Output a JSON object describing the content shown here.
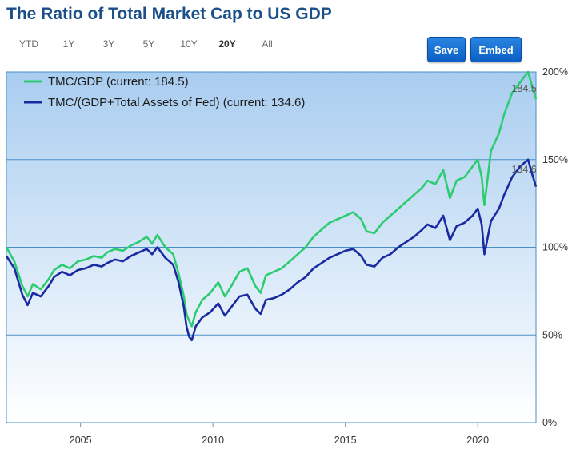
{
  "title": "The Ratio of Total Market Cap to US GDP",
  "ranges": [
    {
      "label": "YTD",
      "active": false
    },
    {
      "label": "1Y",
      "active": false
    },
    {
      "label": "3Y",
      "active": false
    },
    {
      "label": "5Y",
      "active": false
    },
    {
      "label": "10Y",
      "active": false
    },
    {
      "label": "20Y",
      "active": true
    },
    {
      "label": "All",
      "active": false
    }
  ],
  "buttons": {
    "save": "Save",
    "embed": "Embed"
  },
  "colors": {
    "tmc_gdp": "#2ecc71",
    "tmc_fed": "#1a2aa0",
    "bg_top": "#a9cdf0",
    "bg_bottom": "#ffffff",
    "grid": "#4a90c8"
  },
  "chart_data": {
    "type": "line",
    "title": "The Ratio of Total Market Cap to US GDP",
    "xlim": [
      2002.2,
      2022.2
    ],
    "ylim": [
      0,
      200
    ],
    "x_ticks": [
      "2005",
      "2010",
      "2015",
      "2020"
    ],
    "y_ticks": [
      "0%",
      "50%",
      "100%",
      "150%",
      "200%"
    ],
    "legend_position": "top-left",
    "series": [
      {
        "name": "TMC/GDP (current: 184.5)",
        "color": "#2ecc71",
        "points": [
          [
            2002.2,
            100
          ],
          [
            2002.5,
            92
          ],
          [
            2002.8,
            78
          ],
          [
            2003.0,
            72
          ],
          [
            2003.2,
            79
          ],
          [
            2003.5,
            76
          ],
          [
            2003.8,
            82
          ],
          [
            2004.0,
            87
          ],
          [
            2004.3,
            90
          ],
          [
            2004.6,
            88
          ],
          [
            2004.9,
            92
          ],
          [
            2005.2,
            93
          ],
          [
            2005.5,
            95
          ],
          [
            2005.8,
            94
          ],
          [
            2006.0,
            97
          ],
          [
            2006.3,
            99
          ],
          [
            2006.6,
            98
          ],
          [
            2006.9,
            101
          ],
          [
            2007.2,
            103
          ],
          [
            2007.5,
            106
          ],
          [
            2007.7,
            102
          ],
          [
            2007.9,
            107
          ],
          [
            2008.2,
            100
          ],
          [
            2008.5,
            96
          ],
          [
            2008.7,
            85
          ],
          [
            2008.9,
            72
          ],
          [
            2009.0,
            62
          ],
          [
            2009.1,
            58
          ],
          [
            2009.2,
            55
          ],
          [
            2009.35,
            63
          ],
          [
            2009.6,
            70
          ],
          [
            2009.9,
            74
          ],
          [
            2010.2,
            80
          ],
          [
            2010.45,
            72
          ],
          [
            2010.7,
            78
          ],
          [
            2011.0,
            86
          ],
          [
            2011.3,
            88
          ],
          [
            2011.6,
            78
          ],
          [
            2011.8,
            74
          ],
          [
            2012.0,
            84
          ],
          [
            2012.3,
            86
          ],
          [
            2012.6,
            88
          ],
          [
            2012.9,
            92
          ],
          [
            2013.2,
            96
          ],
          [
            2013.5,
            100
          ],
          [
            2013.8,
            106
          ],
          [
            2014.1,
            110
          ],
          [
            2014.4,
            114
          ],
          [
            2014.7,
            116
          ],
          [
            2015.0,
            118
          ],
          [
            2015.3,
            120
          ],
          [
            2015.6,
            116
          ],
          [
            2015.8,
            109
          ],
          [
            2016.1,
            108
          ],
          [
            2016.4,
            114
          ],
          [
            2016.7,
            118
          ],
          [
            2017.0,
            122
          ],
          [
            2017.3,
            126
          ],
          [
            2017.6,
            130
          ],
          [
            2017.9,
            134
          ],
          [
            2018.1,
            138
          ],
          [
            2018.4,
            136
          ],
          [
            2018.7,
            144
          ],
          [
            2018.95,
            128
          ],
          [
            2019.2,
            138
          ],
          [
            2019.5,
            140
          ],
          [
            2019.8,
            146
          ],
          [
            2020.0,
            150
          ],
          [
            2020.15,
            140
          ],
          [
            2020.25,
            124
          ],
          [
            2020.5,
            155
          ],
          [
            2020.8,
            165
          ],
          [
            2021.0,
            176
          ],
          [
            2021.3,
            188
          ],
          [
            2021.6,
            194
          ],
          [
            2021.9,
            200
          ],
          [
            2022.05,
            192
          ],
          [
            2022.2,
            184.5
          ]
        ]
      },
      {
        "name": "TMC/(GDP+Total Assets of Fed) (current: 134.6)",
        "color": "#1a2aa0",
        "points": [
          [
            2002.2,
            95
          ],
          [
            2002.5,
            88
          ],
          [
            2002.8,
            73
          ],
          [
            2003.0,
            67
          ],
          [
            2003.2,
            74
          ],
          [
            2003.5,
            72
          ],
          [
            2003.8,
            78
          ],
          [
            2004.0,
            83
          ],
          [
            2004.3,
            86
          ],
          [
            2004.6,
            84
          ],
          [
            2004.9,
            87
          ],
          [
            2005.2,
            88
          ],
          [
            2005.5,
            90
          ],
          [
            2005.8,
            89
          ],
          [
            2006.0,
            91
          ],
          [
            2006.3,
            93
          ],
          [
            2006.6,
            92
          ],
          [
            2006.9,
            95
          ],
          [
            2007.2,
            97
          ],
          [
            2007.5,
            99
          ],
          [
            2007.7,
            96
          ],
          [
            2007.9,
            100
          ],
          [
            2008.2,
            94
          ],
          [
            2008.5,
            90
          ],
          [
            2008.7,
            80
          ],
          [
            2008.9,
            66
          ],
          [
            2009.0,
            55
          ],
          [
            2009.1,
            49
          ],
          [
            2009.2,
            47
          ],
          [
            2009.35,
            55
          ],
          [
            2009.6,
            60
          ],
          [
            2009.9,
            63
          ],
          [
            2010.2,
            68
          ],
          [
            2010.45,
            61
          ],
          [
            2010.7,
            66
          ],
          [
            2011.0,
            72
          ],
          [
            2011.3,
            73
          ],
          [
            2011.6,
            65
          ],
          [
            2011.8,
            62
          ],
          [
            2012.0,
            70
          ],
          [
            2012.3,
            71
          ],
          [
            2012.6,
            73
          ],
          [
            2012.9,
            76
          ],
          [
            2013.2,
            80
          ],
          [
            2013.5,
            83
          ],
          [
            2013.8,
            88
          ],
          [
            2014.1,
            91
          ],
          [
            2014.4,
            94
          ],
          [
            2014.7,
            96
          ],
          [
            2015.0,
            98
          ],
          [
            2015.3,
            99
          ],
          [
            2015.6,
            95
          ],
          [
            2015.8,
            90
          ],
          [
            2016.1,
            89
          ],
          [
            2016.4,
            94
          ],
          [
            2016.7,
            96
          ],
          [
            2017.0,
            100
          ],
          [
            2017.3,
            103
          ],
          [
            2017.6,
            106
          ],
          [
            2017.9,
            110
          ],
          [
            2018.1,
            113
          ],
          [
            2018.4,
            111
          ],
          [
            2018.7,
            118
          ],
          [
            2018.95,
            104
          ],
          [
            2019.2,
            112
          ],
          [
            2019.5,
            114
          ],
          [
            2019.8,
            118
          ],
          [
            2020.0,
            122
          ],
          [
            2020.15,
            113
          ],
          [
            2020.25,
            96
          ],
          [
            2020.5,
            115
          ],
          [
            2020.8,
            122
          ],
          [
            2021.0,
            130
          ],
          [
            2021.3,
            140
          ],
          [
            2021.6,
            146
          ],
          [
            2021.9,
            150
          ],
          [
            2022.05,
            142
          ],
          [
            2022.2,
            134.6
          ]
        ]
      }
    ],
    "annotations": [
      {
        "text": "184.5",
        "x": 2021.75,
        "y": 188.5,
        "series": 0
      },
      {
        "text": "134.6",
        "x": 2021.75,
        "y": 142.5,
        "series": 1
      }
    ]
  }
}
